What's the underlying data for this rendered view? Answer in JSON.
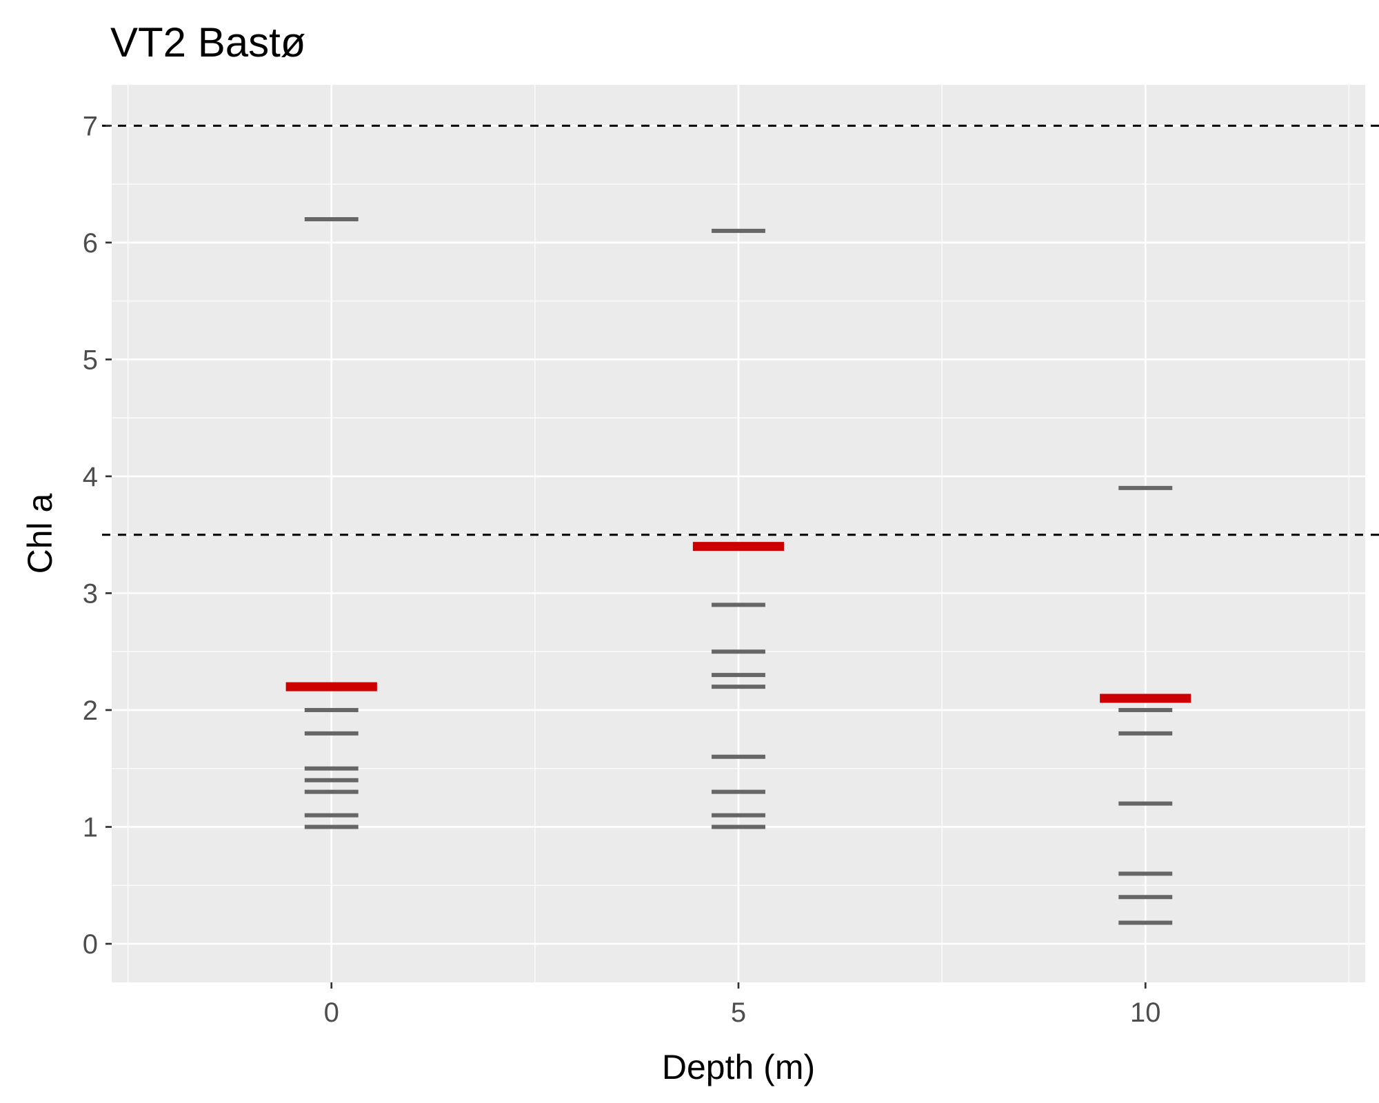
{
  "chart_data": {
    "type": "scatter",
    "title": "VT2 Bastø",
    "xlabel": "Depth (m)",
    "ylabel": "Chl a",
    "xlim": [
      -2.7,
      12.7
    ],
    "ylim": [
      -0.33,
      7.35
    ],
    "x_ticks": [
      0,
      5,
      10
    ],
    "y_ticks": [
      0,
      1,
      2,
      3,
      4,
      5,
      6,
      7
    ],
    "grid": true,
    "legend": "none",
    "reference_lines": [
      {
        "y": 3.5,
        "style": "dashed",
        "color": "#000000"
      },
      {
        "y": 7,
        "style": "dashed",
        "color": "#000000"
      }
    ],
    "series": [
      {
        "color": "#666666",
        "marker": "dash",
        "points": [
          {
            "x": 0,
            "y": 6.2
          },
          {
            "x": 0,
            "y": 2.0
          },
          {
            "x": 0,
            "y": 1.8
          },
          {
            "x": 0,
            "y": 1.5
          },
          {
            "x": 0,
            "y": 1.4
          },
          {
            "x": 0,
            "y": 1.3
          },
          {
            "x": 0,
            "y": 1.1
          },
          {
            "x": 0,
            "y": 1.0
          },
          {
            "x": 5,
            "y": 6.1
          },
          {
            "x": 5,
            "y": 2.9
          },
          {
            "x": 5,
            "y": 2.5
          },
          {
            "x": 5,
            "y": 2.3
          },
          {
            "x": 5,
            "y": 2.2
          },
          {
            "x": 5,
            "y": 1.6
          },
          {
            "x": 5,
            "y": 1.3
          },
          {
            "x": 5,
            "y": 1.1
          },
          {
            "x": 5,
            "y": 1.0
          },
          {
            "x": 10,
            "y": 3.9
          },
          {
            "x": 10,
            "y": 2.0
          },
          {
            "x": 10,
            "y": 1.8
          },
          {
            "x": 10,
            "y": 1.2
          },
          {
            "x": 10,
            "y": 0.6
          },
          {
            "x": 10,
            "y": 0.4
          },
          {
            "x": 10,
            "y": 0.18
          }
        ]
      },
      {
        "color": "#cc0000",
        "marker": "wide-dash",
        "points": [
          {
            "x": 0,
            "y": 2.2
          },
          {
            "x": 5,
            "y": 3.4
          },
          {
            "x": 10,
            "y": 2.1
          }
        ]
      }
    ]
  },
  "colors": {
    "panel_background": "#ebebeb",
    "grid": "#ffffff",
    "tick_label": "#4d4d4d",
    "tick_mark": "#333333"
  }
}
